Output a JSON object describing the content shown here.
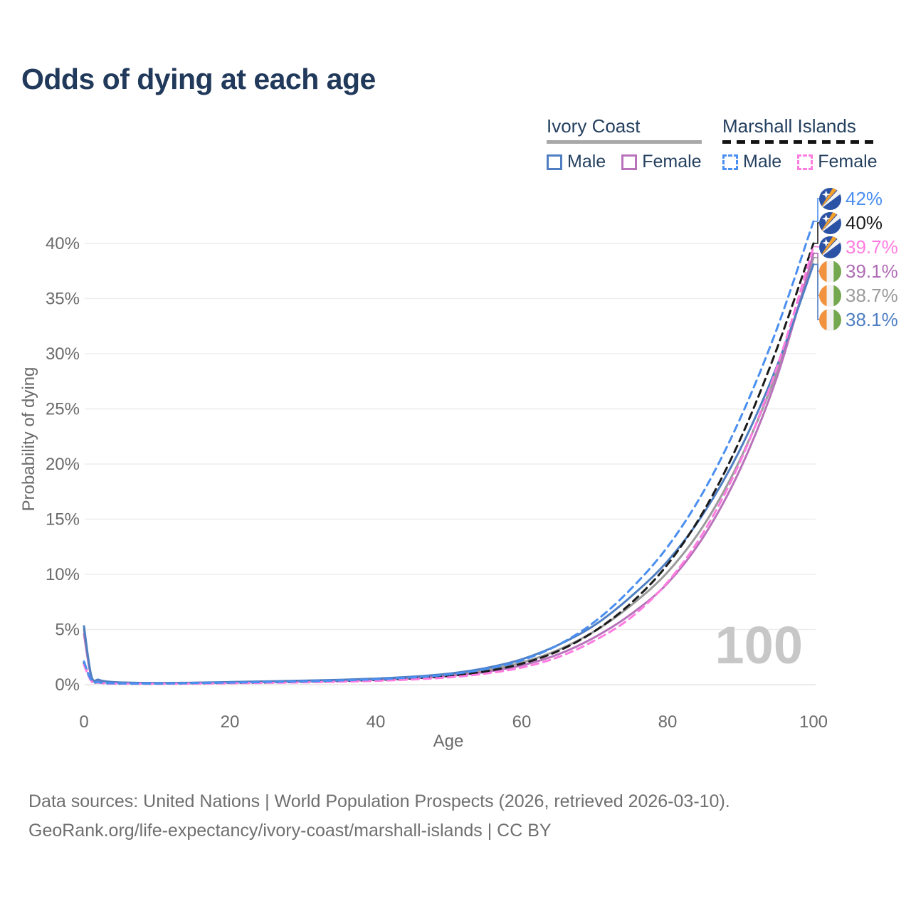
{
  "title": "Odds of dying at each age",
  "legend": {
    "groups": [
      {
        "name": "Ivory Coast",
        "line_style": "solid",
        "line_color": "#a8a8a8",
        "items": [
          {
            "label": "Male",
            "color": "#4f7fc2"
          },
          {
            "label": "Female",
            "color": "#b873bb"
          }
        ]
      },
      {
        "name": "Marshall Islands",
        "line_style": "dashed",
        "line_color": "#141414",
        "items": [
          {
            "label": "Male",
            "color": "#4b8ff0"
          },
          {
            "label": "Female",
            "color": "#ff7ce0"
          }
        ]
      }
    ]
  },
  "chart_data": {
    "type": "line",
    "title": "Odds of dying at each age",
    "xlabel": "Age",
    "ylabel": "Probability of dying",
    "xlim": [
      0,
      100
    ],
    "ylim": [
      0,
      44
    ],
    "x_ticks": [
      0,
      20,
      40,
      60,
      80,
      100
    ],
    "y_ticks": [
      {
        "value": 0,
        "label": "0%"
      },
      {
        "value": 5,
        "label": "5%"
      },
      {
        "value": 10,
        "label": "10%"
      },
      {
        "value": 15,
        "label": "15%"
      },
      {
        "value": 20,
        "label": "20%"
      },
      {
        "value": 25,
        "label": "25%"
      },
      {
        "value": 30,
        "label": "30%"
      },
      {
        "value": 35,
        "label": "35%"
      },
      {
        "value": 40,
        "label": "40%"
      }
    ],
    "grid": true,
    "legend_position": "top-right",
    "watermark": "100",
    "ages": [
      0,
      1,
      2,
      3,
      5,
      10,
      15,
      20,
      25,
      30,
      35,
      40,
      45,
      50,
      55,
      60,
      65,
      70,
      75,
      80,
      85,
      90,
      95,
      100
    ],
    "series": [
      {
        "key": "ci_total",
        "name": "Ivory Coast Both sexes",
        "color": "#9b9b9b",
        "dash": "solid",
        "end_label": "38.7%",
        "values": [
          5.0,
          0.75,
          0.42,
          0.28,
          0.19,
          0.14,
          0.17,
          0.21,
          0.27,
          0.33,
          0.4,
          0.5,
          0.64,
          0.89,
          1.32,
          2.0,
          3.15,
          4.85,
          7.2,
          10.2,
          14.5,
          20.5,
          28.4,
          38.7
        ]
      },
      {
        "key": "ci_female",
        "name": "Ivory Coast Female",
        "color": "#b873bb",
        "dash": "solid",
        "end_label": "39.1%",
        "values": [
          4.6,
          0.7,
          0.4,
          0.27,
          0.18,
          0.13,
          0.15,
          0.19,
          0.24,
          0.29,
          0.35,
          0.44,
          0.57,
          0.78,
          1.15,
          1.75,
          2.75,
          4.3,
          6.4,
          9.2,
          13.5,
          19.6,
          27.9,
          39.1
        ]
      },
      {
        "key": "ci_male",
        "name": "Ivory Coast Male",
        "color": "#4f7fc2",
        "dash": "solid",
        "end_label": "38.1%",
        "values": [
          5.3,
          0.8,
          0.45,
          0.3,
          0.2,
          0.15,
          0.18,
          0.24,
          0.3,
          0.36,
          0.44,
          0.55,
          0.72,
          1.0,
          1.5,
          2.3,
          3.6,
          5.4,
          8.0,
          11.2,
          15.6,
          21.4,
          28.9,
          38.1
        ]
      },
      {
        "key": "mh_total",
        "name": "Marshall Islands Both sexes",
        "color": "#1c1c1c",
        "dash": "dashed",
        "end_label": "40%",
        "values": [
          2.0,
          0.37,
          0.2,
          0.13,
          0.1,
          0.09,
          0.12,
          0.16,
          0.2,
          0.26,
          0.33,
          0.42,
          0.57,
          0.79,
          1.2,
          1.9,
          3.05,
          4.85,
          7.4,
          10.9,
          15.8,
          22.3,
          30.5,
          40.0
        ]
      },
      {
        "key": "mh_female",
        "name": "Marshall Islands Female",
        "color": "#ff7ce0",
        "dash": "dashed",
        "end_label": "39.7%",
        "values": [
          1.8,
          0.33,
          0.18,
          0.12,
          0.09,
          0.08,
          0.1,
          0.13,
          0.17,
          0.21,
          0.27,
          0.35,
          0.47,
          0.66,
          1.0,
          1.55,
          2.5,
          4.0,
          6.1,
          9.3,
          13.9,
          20.3,
          28.8,
          39.7
        ]
      },
      {
        "key": "mh_male",
        "name": "Marshall Islands Male",
        "color": "#4b8ff0",
        "dash": "dashed",
        "end_label": "42%",
        "values": [
          2.1,
          0.4,
          0.22,
          0.15,
          0.11,
          0.1,
          0.14,
          0.19,
          0.24,
          0.3,
          0.38,
          0.49,
          0.66,
          0.92,
          1.4,
          2.2,
          3.6,
          5.7,
          8.7,
          12.5,
          17.6,
          24.2,
          32.3,
          42.0
        ]
      }
    ]
  },
  "endpoints": [
    {
      "label": "42%",
      "color": "#4b8ff0",
      "flag": "marshall-islands",
      "series": "mh_male"
    },
    {
      "label": "40%",
      "color": "#1c1c1c",
      "flag": "marshall-islands",
      "series": "mh_total"
    },
    {
      "label": "39.7%",
      "color": "#ff7ce0",
      "flag": "marshall-islands",
      "series": "mh_female"
    },
    {
      "label": "39.1%",
      "color": "#b06cb5",
      "flag": "ivory-coast",
      "series": "ci_female"
    },
    {
      "label": "38.7%",
      "color": "#9b9b9b",
      "flag": "ivory-coast",
      "series": "ci_total"
    },
    {
      "label": "38.1%",
      "color": "#4f7fc2",
      "flag": "ivory-coast",
      "series": "ci_male"
    }
  ],
  "footer": {
    "line1": "Data sources: United Nations | World Population Prospects (2026, retrieved 2026-03-10).",
    "line2": "GeoRank.org/life-expectancy/ivory-coast/marshall-islands | CC BY"
  }
}
